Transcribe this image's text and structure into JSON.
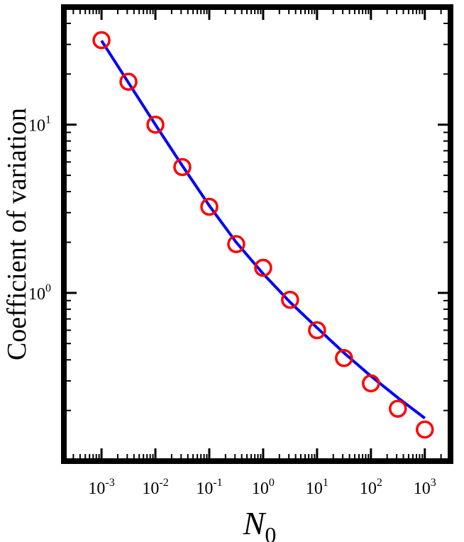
{
  "chart_data": {
    "type": "scatter",
    "xlabel": "N",
    "xlabel_subscript": "0",
    "ylabel": "Coefficient of variation",
    "x_scale": "log",
    "y_scale": "log",
    "xlim": [
      0.0002,
      3000
    ],
    "ylim": [
      0.1,
      50
    ],
    "x_ticks": [
      {
        "base": "10",
        "exp": "-3",
        "value": 0.001
      },
      {
        "base": "10",
        "exp": "-2",
        "value": 0.01
      },
      {
        "base": "10",
        "exp": "-1",
        "value": 0.1
      },
      {
        "base": "10",
        "exp": "0",
        "value": 1
      },
      {
        "base": "10",
        "exp": "1",
        "value": 10
      },
      {
        "base": "10",
        "exp": "2",
        "value": 100
      },
      {
        "base": "10",
        "exp": "3",
        "value": 1000
      }
    ],
    "y_ticks": [
      {
        "base": "10",
        "exp": "0",
        "value": 1
      },
      {
        "base": "10",
        "exp": "1",
        "value": 10
      }
    ],
    "grid": false,
    "legend": "none",
    "series": [
      {
        "kind": "markers",
        "marker": "open-circle",
        "color": "#ff0000",
        "points": [
          {
            "x": 0.001,
            "y": 31.8
          },
          {
            "x": 0.00316,
            "y": 18.0
          },
          {
            "x": 0.01,
            "y": 10.0
          },
          {
            "x": 0.0316,
            "y": 5.6
          },
          {
            "x": 0.1,
            "y": 3.25
          },
          {
            "x": 0.316,
            "y": 1.95
          },
          {
            "x": 1,
            "y": 1.41
          },
          {
            "x": 3.16,
            "y": 0.91
          },
          {
            "x": 10,
            "y": 0.6
          },
          {
            "x": 31.6,
            "y": 0.41
          },
          {
            "x": 100,
            "y": 0.29
          },
          {
            "x": 316,
            "y": 0.205
          },
          {
            "x": 1000,
            "y": 0.154
          }
        ]
      },
      {
        "kind": "line",
        "color": "#0000ff",
        "points": [
          {
            "x": 0.001,
            "y": 31.6
          },
          {
            "x": 0.00316,
            "y": 17.8
          },
          {
            "x": 0.01,
            "y": 10.0
          },
          {
            "x": 0.0316,
            "y": 5.7
          },
          {
            "x": 0.1,
            "y": 3.3
          },
          {
            "x": 0.316,
            "y": 2.0
          },
          {
            "x": 1,
            "y": 1.3
          },
          {
            "x": 3.16,
            "y": 0.88
          },
          {
            "x": 10,
            "y": 0.62
          },
          {
            "x": 31.6,
            "y": 0.44
          },
          {
            "x": 100,
            "y": 0.32
          },
          {
            "x": 316,
            "y": 0.238
          },
          {
            "x": 1000,
            "y": 0.18
          }
        ]
      }
    ]
  }
}
